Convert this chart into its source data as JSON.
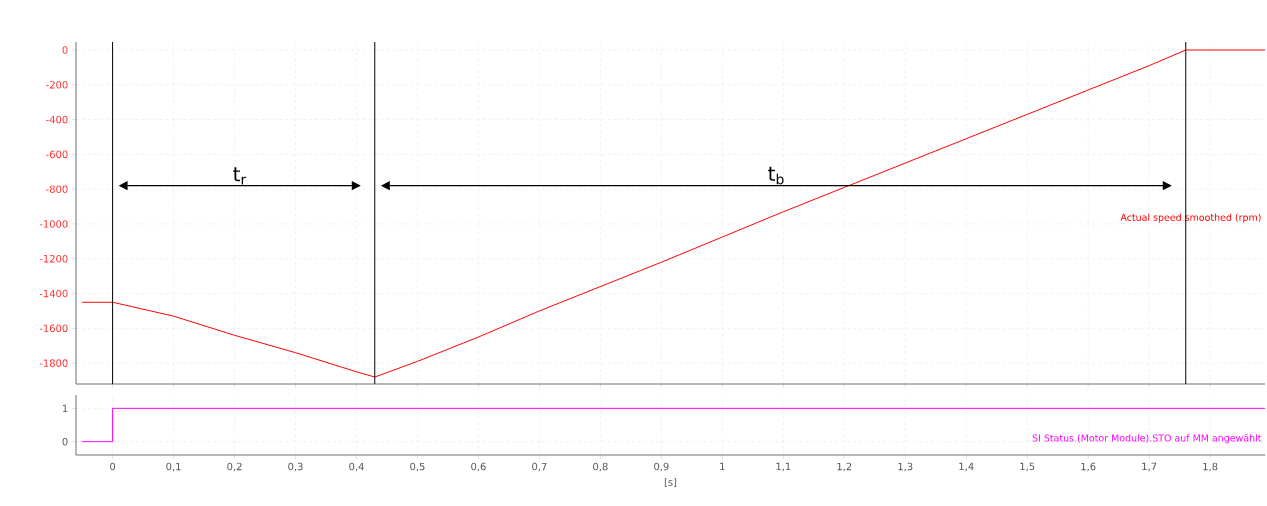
{
  "chart_data": [
    {
      "type": "line",
      "xlim": [
        -0.06,
        1.89
      ],
      "ylim": [
        -1920,
        46
      ],
      "xticks": [
        {
          "value": 0,
          "label": null
        },
        {
          "value": 0.1,
          "label": null
        },
        {
          "value": 0.2,
          "label": null
        },
        {
          "value": 0.3,
          "label": null
        },
        {
          "value": 0.4,
          "label": null
        },
        {
          "value": 0.5,
          "label": null
        },
        {
          "value": 0.6,
          "label": null
        },
        {
          "value": 0.7,
          "label": null
        },
        {
          "value": 0.8,
          "label": null
        },
        {
          "value": 0.9,
          "label": null
        },
        {
          "value": 1,
          "label": null
        },
        {
          "value": 1.1,
          "label": null
        },
        {
          "value": 1.2,
          "label": null
        },
        {
          "value": 1.3,
          "label": null
        },
        {
          "value": 1.4,
          "label": null
        },
        {
          "value": 1.5,
          "label": null
        },
        {
          "value": 1.6,
          "label": null
        },
        {
          "value": 1.7,
          "label": null
        },
        {
          "value": 1.8,
          "label": null
        }
      ],
      "yticks": [
        0,
        -200,
        -400,
        -600,
        -800,
        -1000,
        -1200,
        -1400,
        -1600,
        -1800
      ],
      "tick_labels": "y",
      "grid": true,
      "series": [
        {
          "name": "Actual speed smoothed (rpm)",
          "color": "#ff0000",
          "x": [
            -0.05,
            0,
            0.1,
            0.2,
            0.3,
            0.4,
            0.43,
            0.5,
            0.6,
            0.7,
            0.8,
            0.9,
            1.0,
            1.1,
            1.2,
            1.3,
            1.4,
            1.5,
            1.6,
            1.7,
            1.76,
            1.89
          ],
          "values": [
            -1450,
            -1450,
            -1530,
            -1640,
            -1740,
            -1850,
            -1880,
            -1790,
            -1650,
            -1500,
            -1360,
            -1220,
            -1075,
            -930,
            -790,
            -650,
            -510,
            -370,
            -230,
            -90,
            0,
            0
          ]
        }
      ],
      "ref_lines": [
        {
          "axis": "x",
          "value": 0,
          "color": "#000000"
        },
        {
          "axis": "x",
          "value": 0.43,
          "color": "#000000"
        },
        {
          "axis": "x",
          "value": 1.76,
          "color": "#000000"
        }
      ],
      "annotations": [
        "t$_{r}$",
        "t$_{b}$"
      ]
    },
    {
      "type": "line",
      "xlim": [
        -0.06,
        1.89
      ],
      "ylim": [
        -0.4,
        1.4
      ],
      "xlabel": "[s]",
      "xticks": [
        {
          "value": 0,
          "label": "0"
        },
        {
          "value": 0.1,
          "label": "0,1"
        },
        {
          "value": 0.2,
          "label": "0,2"
        },
        {
          "value": 0.3,
          "label": "0,3"
        },
        {
          "value": 0.4,
          "label": "0,4"
        },
        {
          "value": 0.5,
          "label": "0,5"
        },
        {
          "value": 0.6,
          "label": "0,6"
        },
        {
          "value": 0.7,
          "label": "0,7"
        },
        {
          "value": 0.8,
          "label": "0,8"
        },
        {
          "value": 0.9,
          "label": "0,9"
        },
        {
          "value": 1,
          "label": "1"
        },
        {
          "value": 1.1,
          "label": "1,1"
        },
        {
          "value": 1.2,
          "label": "1,2"
        },
        {
          "value": 1.3,
          "label": "1,3"
        },
        {
          "value": 1.4,
          "label": "1,4"
        },
        {
          "value": 1.5,
          "label": "1,5"
        },
        {
          "value": 1.6,
          "label": "1,6"
        },
        {
          "value": 1.7,
          "label": "1,7"
        },
        {
          "value": 1.8,
          "label": "1,8"
        }
      ],
      "yticks": [
        0,
        1
      ],
      "grid": true,
      "series": [
        {
          "name": "SI Status (Motor Module).STO auf MM angewählt",
          "color": "#ff00ff",
          "x": [
            -0.05,
            0,
            0,
            1.89
          ],
          "values": [
            0,
            0,
            1,
            1
          ]
        }
      ]
    }
  ]
}
